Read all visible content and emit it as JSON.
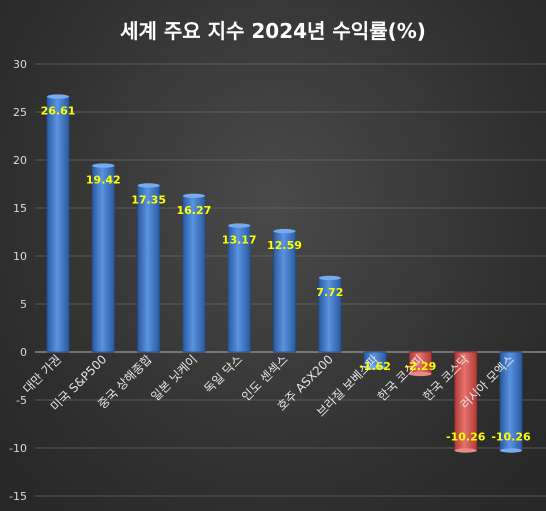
{
  "chart_data": {
    "type": "bar",
    "title": "세계 주요 지수 2024년 수익률(%)",
    "categories": [
      "대만 가권",
      "미국 S&P500",
      "중국 상해종합",
      "일본 닛케이",
      "독일 닥스",
      "인도 센섹스",
      "호주 ASX200",
      "브라질 보베스파",
      "한국 코스피",
      "한국 코스닥",
      "러시아 모엑스"
    ],
    "values": [
      26.61,
      19.42,
      17.35,
      16.27,
      13.17,
      12.59,
      7.72,
      -1.62,
      -2.29,
      -10.26,
      -10.26
    ],
    "data_labels": [
      "26.61",
      "19.42",
      "17.35",
      "16.27",
      "13.17",
      "12.59",
      "7.72",
      "-1.62",
      "-2.29",
      "-10.26",
      "-10.26"
    ],
    "bar_colors": [
      "#3f78c8",
      "#3f78c8",
      "#3f78c8",
      "#3f78c8",
      "#3f78c8",
      "#3f78c8",
      "#3f78c8",
      "#3f78c8",
      "#d9534f",
      "#d9534f",
      "#3f78c8"
    ],
    "ylim": [
      -15,
      30
    ],
    "yticks": [
      30,
      25,
      20,
      15,
      10,
      5,
      0,
      -5,
      -10,
      -15
    ],
    "grid": true,
    "label_color": "#ffff00"
  }
}
